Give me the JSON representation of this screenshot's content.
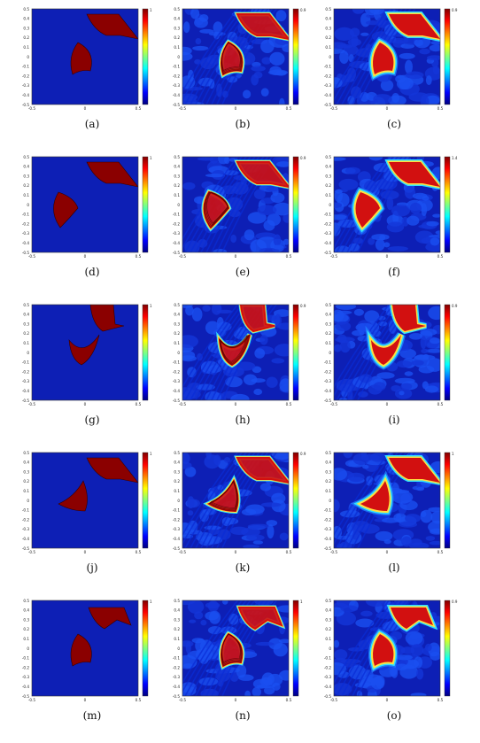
{
  "panels": [
    {
      "caption": "(a)",
      "kind": "exact",
      "shape": "cone",
      "cmax": "1",
      "defect": "corner"
    },
    {
      "caption": "(b)",
      "kind": "recon",
      "shape": "cone",
      "cmax": "0.9",
      "defect": "corner"
    },
    {
      "caption": "(c)",
      "kind": "recon2",
      "shape": "cone",
      "cmax": "0.9",
      "defect": "corner"
    },
    {
      "caption": "(d)",
      "kind": "exact",
      "shape": "coneleft",
      "cmax": "1",
      "defect": "corner"
    },
    {
      "caption": "(e)",
      "kind": "recon",
      "shape": "coneleft",
      "cmax": "0.9",
      "defect": "corner"
    },
    {
      "caption": "(f)",
      "kind": "recon2",
      "shape": "coneleft",
      "cmax": "1.4",
      "defect": "corner"
    },
    {
      "caption": "(g)",
      "kind": "exact",
      "shape": "crescent",
      "cmax": "1",
      "defect": "top"
    },
    {
      "caption": "(h)",
      "kind": "recon",
      "shape": "crescent",
      "cmax": "0.9",
      "defect": "top"
    },
    {
      "caption": "(i)",
      "kind": "recon2",
      "shape": "crescent",
      "cmax": "0.9",
      "defect": "top"
    },
    {
      "caption": "(j)",
      "kind": "exact",
      "shape": "tilted",
      "cmax": "1",
      "defect": "corner"
    },
    {
      "caption": "(k)",
      "kind": "recon",
      "shape": "tilted",
      "cmax": "0.9",
      "defect": "corner"
    },
    {
      "caption": "(l)",
      "kind": "recon2",
      "shape": "tilted",
      "cmax": "1",
      "defect": "corner"
    },
    {
      "caption": "(m)",
      "kind": "exact",
      "shape": "cone",
      "cmax": "1",
      "defect": "two"
    },
    {
      "caption": "(n)",
      "kind": "recon",
      "shape": "cone",
      "cmax": "1",
      "defect": "two"
    },
    {
      "caption": "(o)",
      "kind": "recon2",
      "shape": "cone",
      "cmax": "0.9",
      "defect": "two"
    }
  ],
  "axis": {
    "y_ticks": [
      "0.5",
      "0.4",
      "0.3",
      "0.2",
      "0.1",
      "0",
      "-0.1",
      "-0.2",
      "-0.3",
      "-0.4",
      "-0.5"
    ],
    "x_ticks": [
      "-0.5",
      "0",
      "0.5"
    ]
  },
  "colors": {
    "background_blue": "#0d1fb5",
    "noise_blue": "#1a4ff0",
    "shape_red": "#8b0000",
    "ring_red": "#d21010",
    "ring_yellow": "#ffe040",
    "ring_cyan": "#30e0ff"
  }
}
